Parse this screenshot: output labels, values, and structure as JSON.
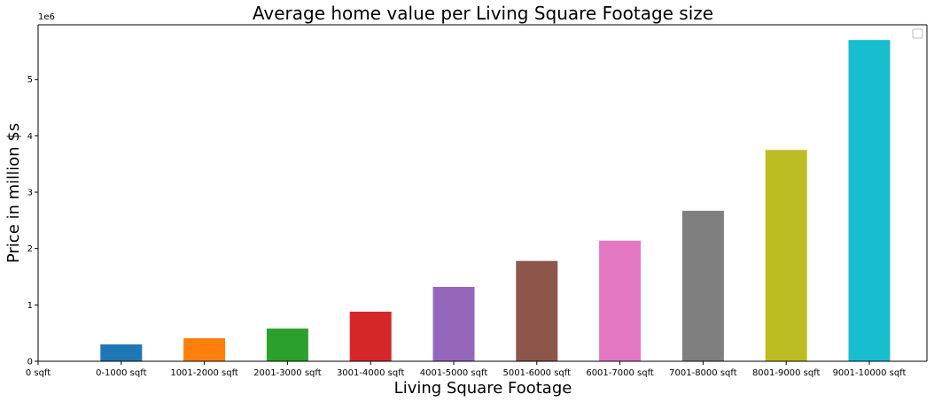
{
  "chart_data": {
    "type": "bar",
    "title": "Average home value per Living Square Footage size",
    "xlabel": "Living Square Footage",
    "ylabel": "Price in million $s",
    "y_offset_label": "1e6",
    "categories": [
      "0 sqft",
      "0-1000 sqft",
      "1001-2000 sqft",
      "2001-3000 sqft",
      "3001-4000 sqft",
      "4001-5000 sqft",
      "5001-6000 sqft",
      "6001-7000 sqft",
      "7001-8000 sqft",
      "8001-9000 sqft",
      "9001-10000 sqft"
    ],
    "values": [
      null,
      300000,
      410000,
      580000,
      880000,
      1320000,
      1780000,
      2140000,
      2670000,
      3750000,
      5700000
    ],
    "colors": [
      "#1f77b4",
      "#1f77b4",
      "#ff7f0e",
      "#2ca02c",
      "#d62728",
      "#9467bd",
      "#8c564b",
      "#e377c2",
      "#7f7f7f",
      "#bcbd22",
      "#17becf"
    ],
    "yticks": [
      0,
      1,
      2,
      3,
      4,
      5
    ],
    "ylim": [
      0,
      5970000
    ],
    "grid": false,
    "legend": "top-right, empty"
  }
}
